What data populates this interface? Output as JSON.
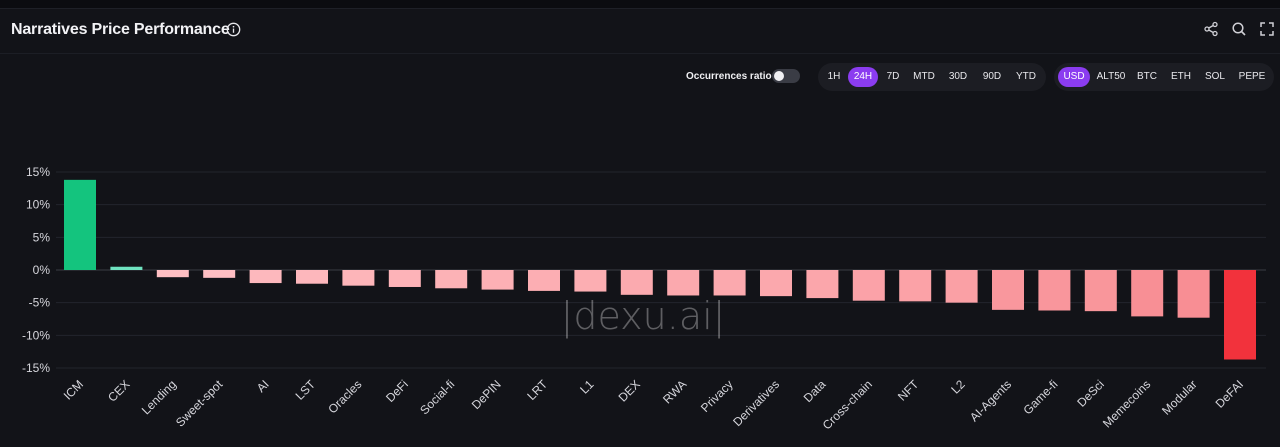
{
  "header": {
    "title": "Narratives Price Performance",
    "icons": [
      "info-icon",
      "share-icon",
      "search-icon",
      "fullscreen-icon"
    ]
  },
  "controls": {
    "occurrences_label": "Occurrences ratio",
    "occurrences_enabled": false,
    "timeframes": [
      "1H",
      "24H",
      "7D",
      "MTD",
      "30D",
      "90D",
      "YTD"
    ],
    "selected_timeframe": "24H",
    "currencies": [
      "USD",
      "ALT50",
      "BTC",
      "ETH",
      "SOL",
      "PEPE"
    ],
    "selected_currency": "USD"
  },
  "watermark": "|dexu.ai|",
  "colors": {
    "accent": "#8b3cf0",
    "positive_strong": "#14c47e",
    "positive_light": "#6fe3c0",
    "negative_light": "#ffcdd0",
    "negative_strong": "#f2323c"
  },
  "chart_data": {
    "type": "bar",
    "categories": [
      "ICM",
      "CEX",
      "Lending",
      "Sweet-spot",
      "AI",
      "LST",
      "Oracles",
      "DeFi",
      "Social-fi",
      "DePIN",
      "LRT",
      "L1",
      "DEX",
      "RWA",
      "Privacy",
      "Derivatives",
      "Data",
      "Cross-chain",
      "NFT",
      "L2",
      "AI-Agents",
      "Game-fi",
      "DeSci",
      "Memecoins",
      "Modular",
      "DeFAI"
    ],
    "values": [
      13.8,
      0.5,
      -1.1,
      -1.2,
      -2.0,
      -2.1,
      -2.4,
      -2.6,
      -2.8,
      -3.0,
      -3.2,
      -3.3,
      -3.8,
      -3.9,
      -3.9,
      -4.0,
      -4.3,
      -4.7,
      -4.8,
      -5.0,
      -6.1,
      -6.2,
      -6.3,
      -7.1,
      -7.3,
      -13.7
    ],
    "ylim": [
      -15,
      15
    ],
    "yticks": [
      15,
      10,
      5,
      0,
      -5,
      -10,
      -15
    ],
    "ytick_labels": [
      "15%",
      "10%",
      "5%",
      "0%",
      "-5%",
      "-10%",
      "-15%"
    ],
    "grid": true,
    "legend": "none"
  }
}
